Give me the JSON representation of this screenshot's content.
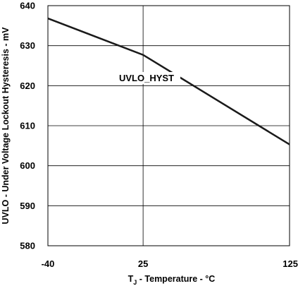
{
  "chart_data": {
    "type": "line",
    "xlabel_main": "T",
    "xlabel_sub": "J",
    "xlabel_rest": " - Temperature - °C",
    "ylabel": "UVLO - Under Voltage Lockout Hysteresis - mV",
    "xlim": [
      -40,
      125
    ],
    "ylim": [
      580,
      640
    ],
    "x_ticks": [
      -40,
      25,
      125
    ],
    "y_ticks": [
      580,
      590,
      600,
      610,
      620,
      630,
      640
    ],
    "grid": true,
    "series": [
      {
        "name": "UVLO_HYST",
        "x": [
          -40,
          25,
          125
        ],
        "y": [
          636.8,
          627.7,
          605.3
        ]
      }
    ],
    "annotation": "UVLO_HYST",
    "colors": {
      "line": "#1a1a1a",
      "grid": "#000000",
      "frame": "#000000"
    }
  }
}
